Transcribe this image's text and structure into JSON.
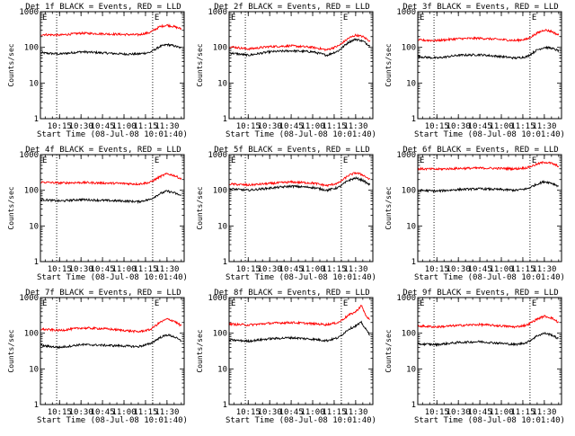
{
  "xlabel": "Start Time (08-Jul-08 10:01:40)",
  "ylabel": "Counts/sec",
  "x_tick_labels": [
    "10:15",
    "10:30",
    "10:45",
    "11:00",
    "11:15",
    "11:30"
  ],
  "y_tick_labels": [
    "1",
    "10",
    "100",
    "1000"
  ],
  "marker_labels": [
    "E",
    "E"
  ],
  "colors": {
    "events": "#000000",
    "lld": "#ff0000",
    "axes": "#000000",
    "dotted": "#000000"
  },
  "chart_data": [
    {
      "type": "line",
      "title": "Det 1f BLACK = Events, RED = LLD",
      "xlim": [
        "10:01:40",
        "11:42:00"
      ],
      "ylim": [
        1,
        1000
      ],
      "yscale": "log",
      "vlines": [
        "10:13:00",
        "11:20:00"
      ],
      "series": [
        {
          "color": "#000000",
          "x": [
            "10:02",
            "10:15",
            "10:30",
            "10:45",
            "11:00",
            "11:10",
            "11:18",
            "11:25",
            "11:30",
            "11:35",
            "11:40"
          ],
          "y": [
            70,
            65,
            75,
            70,
            65,
            65,
            72,
            105,
            120,
            110,
            95
          ]
        },
        {
          "color": "#ff0000",
          "x": [
            "10:02",
            "10:15",
            "10:30",
            "10:45",
            "11:00",
            "11:10",
            "11:18",
            "11:25",
            "11:30",
            "11:35",
            "11:40"
          ],
          "y": [
            230,
            220,
            250,
            240,
            230,
            225,
            260,
            380,
            420,
            380,
            330
          ]
        }
      ]
    },
    {
      "type": "line",
      "title": "Det 2f BLACK = Events, RED = LLD",
      "xlim": [
        "10:01:40",
        "11:42:00"
      ],
      "ylim": [
        1,
        1000
      ],
      "yscale": "log",
      "vlines": [
        "10:13:00",
        "11:20:00"
      ],
      "series": [
        {
          "color": "#000000",
          "x": [
            "10:02",
            "10:15",
            "10:30",
            "10:45",
            "11:00",
            "11:10",
            "11:18",
            "11:25",
            "11:30",
            "11:35",
            "11:40"
          ],
          "y": [
            70,
            60,
            75,
            80,
            75,
            60,
            80,
            140,
            170,
            150,
            110
          ]
        },
        {
          "color": "#ff0000",
          "x": [
            "10:02",
            "10:15",
            "10:30",
            "10:45",
            "11:00",
            "11:10",
            "11:18",
            "11:25",
            "11:30",
            "11:35",
            "11:40"
          ],
          "y": [
            105,
            90,
            105,
            110,
            100,
            85,
            110,
            180,
            220,
            200,
            150
          ]
        }
      ]
    },
    {
      "type": "line",
      "title": "Det 3f BLACK = Events, RED = LLD",
      "xlim": [
        "10:01:40",
        "11:42:00"
      ],
      "ylim": [
        1,
        1000
      ],
      "yscale": "log",
      "vlines": [
        "10:13:00",
        "11:20:00"
      ],
      "series": [
        {
          "color": "#000000",
          "x": [
            "10:02",
            "10:15",
            "10:30",
            "10:45",
            "11:00",
            "11:10",
            "11:18",
            "11:25",
            "11:30",
            "11:35",
            "11:40"
          ],
          "y": [
            55,
            50,
            60,
            62,
            55,
            50,
            55,
            85,
            100,
            95,
            80
          ]
        },
        {
          "color": "#ff0000",
          "x": [
            "10:02",
            "10:15",
            "10:30",
            "10:45",
            "11:00",
            "11:10",
            "11:18",
            "11:25",
            "11:30",
            "11:35",
            "11:40"
          ],
          "y": [
            160,
            155,
            175,
            180,
            165,
            155,
            170,
            250,
            310,
            280,
            220
          ]
        }
      ]
    },
    {
      "type": "line",
      "title": "Det 4f BLACK = Events, RED = LLD",
      "xlim": [
        "10:01:40",
        "11:42:00"
      ],
      "ylim": [
        1,
        1000
      ],
      "yscale": "log",
      "vlines": [
        "10:13:00",
        "11:20:00"
      ],
      "series": [
        {
          "color": "#000000",
          "x": [
            "10:02",
            "10:15",
            "10:30",
            "10:45",
            "11:00",
            "11:10",
            "11:18",
            "11:25",
            "11:30",
            "11:35",
            "11:40"
          ],
          "y": [
            55,
            50,
            55,
            52,
            50,
            48,
            55,
            80,
            95,
            85,
            70
          ]
        },
        {
          "color": "#ff0000",
          "x": [
            "10:02",
            "10:15",
            "10:30",
            "10:45",
            "11:00",
            "11:10",
            "11:18",
            "11:25",
            "11:30",
            "11:35",
            "11:40"
          ],
          "y": [
            170,
            160,
            165,
            160,
            155,
            150,
            165,
            240,
            290,
            260,
            210
          ]
        }
      ]
    },
    {
      "type": "line",
      "title": "Det 5f BLACK = Events, RED = LLD",
      "xlim": [
        "10:01:40",
        "11:42:00"
      ],
      "ylim": [
        1,
        1000
      ],
      "yscale": "log",
      "vlines": [
        "10:13:00",
        "11:20:00"
      ],
      "series": [
        {
          "color": "#000000",
          "x": [
            "10:02",
            "10:15",
            "10:30",
            "10:45",
            "11:00",
            "11:10",
            "11:18",
            "11:25",
            "11:30",
            "11:35",
            "11:40"
          ],
          "y": [
            110,
            100,
            115,
            130,
            120,
            100,
            120,
            190,
            220,
            190,
            140
          ]
        },
        {
          "color": "#ff0000",
          "x": [
            "10:02",
            "10:15",
            "10:30",
            "10:45",
            "11:00",
            "11:10",
            "11:18",
            "11:25",
            "11:30",
            "11:35",
            "11:40"
          ],
          "y": [
            150,
            140,
            155,
            170,
            160,
            135,
            160,
            260,
            310,
            270,
            200
          ]
        }
      ]
    },
    {
      "type": "line",
      "title": "Det 6f BLACK = Events, RED = LLD",
      "xlim": [
        "10:01:40",
        "11:42:00"
      ],
      "ylim": [
        1,
        1000
      ],
      "yscale": "log",
      "vlines": [
        "10:13:00",
        "11:20:00"
      ],
      "series": [
        {
          "color": "#000000",
          "x": [
            "10:02",
            "10:15",
            "10:30",
            "10:45",
            "11:00",
            "11:10",
            "11:18",
            "11:25",
            "11:30",
            "11:35",
            "11:40"
          ],
          "y": [
            100,
            95,
            105,
            110,
            105,
            100,
            110,
            150,
            175,
            160,
            130
          ]
        },
        {
          "color": "#ff0000",
          "x": [
            "10:02",
            "10:15",
            "10:30",
            "10:45",
            "11:00",
            "11:10",
            "11:18",
            "11:25",
            "11:30",
            "11:35",
            "11:40"
          ],
          "y": [
            400,
            390,
            410,
            420,
            410,
            400,
            430,
            540,
            620,
            570,
            470
          ]
        }
      ]
    },
    {
      "type": "line",
      "title": "Det 7f BLACK = Events, RED = LLD",
      "xlim": [
        "10:01:40",
        "11:42:00"
      ],
      "ylim": [
        1,
        1000
      ],
      "yscale": "log",
      "vlines": [
        "10:13:00",
        "11:20:00"
      ],
      "series": [
        {
          "color": "#000000",
          "x": [
            "10:02",
            "10:15",
            "10:30",
            "10:45",
            "11:00",
            "11:10",
            "11:18",
            "11:25",
            "11:30",
            "11:35",
            "11:40"
          ],
          "y": [
            45,
            40,
            48,
            46,
            44,
            42,
            50,
            75,
            90,
            80,
            60
          ]
        },
        {
          "color": "#ff0000",
          "x": [
            "10:02",
            "10:15",
            "10:30",
            "10:45",
            "11:00",
            "11:10",
            "11:18",
            "11:25",
            "11:30",
            "11:35",
            "11:40"
          ],
          "y": [
            130,
            120,
            140,
            135,
            120,
            110,
            125,
            200,
            250,
            220,
            160
          ]
        }
      ]
    },
    {
      "type": "line",
      "title": "Det 8f BLACK = Events, RED = LLD",
      "xlim": [
        "10:01:40",
        "11:42:00"
      ],
      "ylim": [
        1,
        1000
      ],
      "yscale": "log",
      "vlines": [
        "10:13:00",
        "11:20:00"
      ],
      "series": [
        {
          "color": "#000000",
          "x": [
            "10:02",
            "10:15",
            "10:30",
            "10:45",
            "11:00",
            "11:10",
            "11:18",
            "11:25",
            "11:30",
            "11:34",
            "11:37",
            "11:40"
          ],
          "y": [
            65,
            60,
            70,
            75,
            68,
            62,
            75,
            130,
            160,
            200,
            130,
            90
          ]
        },
        {
          "color": "#ff0000",
          "x": [
            "10:02",
            "10:15",
            "10:30",
            "10:45",
            "11:00",
            "11:10",
            "11:18",
            "11:25",
            "11:30",
            "11:34",
            "11:37",
            "11:40"
          ],
          "y": [
            180,
            170,
            190,
            200,
            185,
            175,
            200,
            320,
            400,
            600,
            320,
            230
          ]
        }
      ]
    },
    {
      "type": "line",
      "title": "Det 9f BLACK = Events, RED = LLD",
      "xlim": [
        "10:01:40",
        "11:42:00"
      ],
      "ylim": [
        1,
        1000
      ],
      "yscale": "log",
      "vlines": [
        "10:13:00",
        "11:20:00"
      ],
      "series": [
        {
          "color": "#000000",
          "x": [
            "10:02",
            "10:15",
            "10:30",
            "10:45",
            "11:00",
            "11:10",
            "11:18",
            "11:25",
            "11:30",
            "11:35",
            "11:40"
          ],
          "y": [
            50,
            48,
            55,
            58,
            52,
            48,
            55,
            85,
            100,
            90,
            70
          ]
        },
        {
          "color": "#ff0000",
          "x": [
            "10:02",
            "10:15",
            "10:30",
            "10:45",
            "11:00",
            "11:10",
            "11:18",
            "11:25",
            "11:30",
            "11:35",
            "11:40"
          ],
          "y": [
            160,
            150,
            165,
            175,
            160,
            150,
            170,
            250,
            300,
            270,
            200
          ]
        }
      ]
    }
  ]
}
